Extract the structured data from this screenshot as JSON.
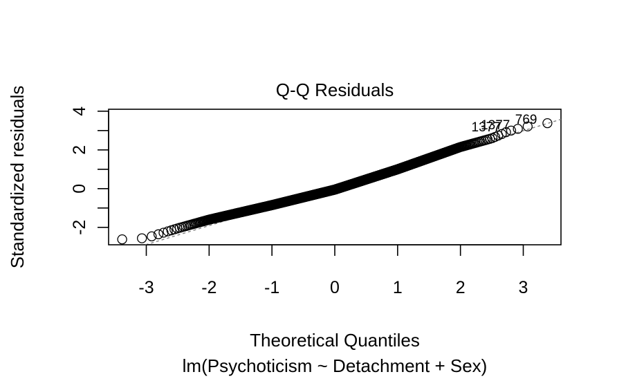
{
  "chart_data": {
    "type": "scatter",
    "title": "Q-Q Residuals",
    "subtitle": "lm(Psychoticism ~ Detachment + Sex)",
    "xlabel": "Theoretical Quantiles",
    "ylabel": "Standardized residuals",
    "xlim": [
      -3.6,
      3.6
    ],
    "ylim": [
      -2.9,
      4.1
    ],
    "xticks": [
      -3,
      -2,
      -1,
      0,
      1,
      2,
      3
    ],
    "yticks": [
      -2,
      0,
      2,
      4
    ],
    "xtick_labels": [
      "-3",
      "-2",
      "-1",
      "0",
      "1",
      "2",
      "3"
    ],
    "ytick_labels": [
      "-2",
      "0",
      "2",
      "4"
    ],
    "reference_line": {
      "style": "dashed",
      "color": "#808080",
      "intercept": 0.05,
      "slope": 0.98
    },
    "point_labels": [
      {
        "text": "769",
        "x": 3.33,
        "y": 3.38
      },
      {
        "text": "1377",
        "x": 2.9,
        "y": 3.1
      },
      {
        "text": "1377",
        "x": 2.75,
        "y": 3.0
      }
    ],
    "grid": false,
    "legend": "none",
    "marker": "open-circle"
  }
}
